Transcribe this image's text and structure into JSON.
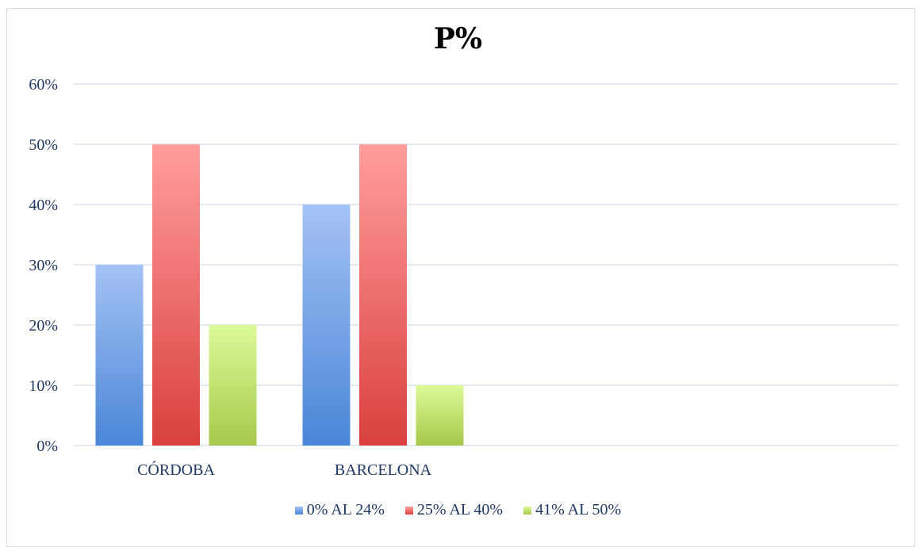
{
  "chart_data": {
    "type": "bar",
    "title": "P%",
    "categories": [
      "CÓRDOBA",
      "BARCELONA"
    ],
    "series": [
      {
        "name": "0% AL 24%",
        "values": [
          30,
          40
        ],
        "color": "#4a86d8"
      },
      {
        "name": "25% AL 40%",
        "values": [
          50,
          50
        ],
        "color": "#d9403e"
      },
      {
        "name": "41% AL 50%",
        "values": [
          20,
          10
        ],
        "color": "#a6c94a"
      }
    ],
    "yticks": [
      "0%",
      "10%",
      "20%",
      "30%",
      "40%",
      "50%",
      "60%"
    ],
    "ylim": [
      0,
      60
    ],
    "grid": true,
    "legend": "bottom"
  }
}
